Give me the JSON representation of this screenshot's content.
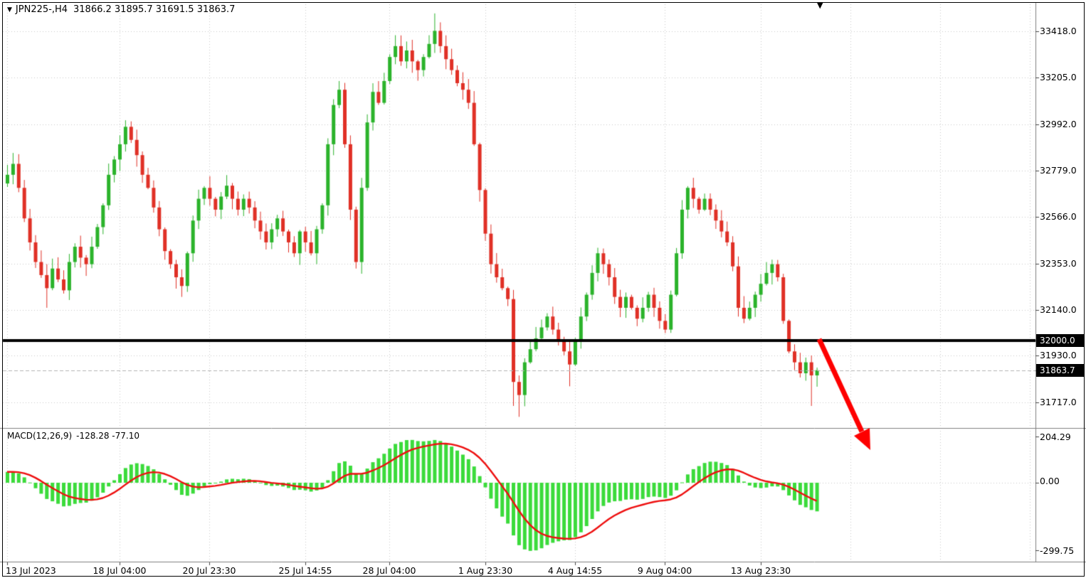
{
  "header": {
    "dropdown_icon": "▼",
    "symbol": "JPN225-,H4",
    "ohlc_text": "31866.2 31895.7 31691.5 31863.7"
  },
  "shift_marker_icon": "▼",
  "indicator_label": {
    "name": "MACD(12,26,9)",
    "values": "-128.28 -77.10"
  },
  "price_axis": {
    "labels": [
      "33418.0",
      "33205.0",
      "32992.0",
      "32779.0",
      "32566.0",
      "32353.0",
      "32140.0",
      "31930.0",
      "31717.0"
    ],
    "line_tag": "32000.0",
    "bid_tag": "31863.7"
  },
  "macd_axis": {
    "labels": [
      "204.29",
      "0.00",
      "-299.75"
    ]
  },
  "colors": {
    "background": "#ffffff",
    "grid": "#c9c9c9",
    "candle_up": "#2bb32b",
    "candle_down": "#e03026",
    "histogram": "#3bdb3b",
    "signal": "#ee0e0e",
    "hline": "#000000",
    "bid_line": "#b4b4b4",
    "arrow": "#fe0000",
    "tag_bg": "#000000",
    "tag_fg": "#ffffff"
  },
  "chart_data": {
    "type": "candlestick",
    "title": "JPN225- H4 with MACD(12,26,9)",
    "symbol": "JPN225-",
    "timeframe": "H4",
    "current_ohlc": {
      "open": 31866.2,
      "high": 31895.7,
      "low": 31691.5,
      "close": 31863.7
    },
    "price_ticks": [
      33418.0,
      33205.0,
      32992.0,
      32779.0,
      32566.0,
      32353.0,
      32140.0,
      31930.0,
      31717.0
    ],
    "horizontal_line": 32000.0,
    "bid_price": 31863.7,
    "macd": {
      "fast": 12,
      "slow": 26,
      "signal": 9,
      "current_macd": -128.28,
      "current_signal": -77.1,
      "ticks": [
        204.29,
        0.0,
        -299.75
      ]
    },
    "x_tick_labels": [
      "13 Jul 2023",
      "18 Jul 04:00",
      "20 Jul 23:30",
      "25 Jul 14:55",
      "28 Jul 04:00",
      "1 Aug 23:30",
      "4 Aug 14:55",
      "9 Aug 04:00",
      "13 Aug 23:30"
    ],
    "x_tick_indices": [
      0,
      20,
      36,
      53,
      68,
      85,
      101,
      117,
      134
    ],
    "open_first": 32720,
    "closes": [
      32760,
      32810,
      32700,
      32560,
      32450,
      32360,
      32300,
      32240,
      32330,
      32280,
      32230,
      32360,
      32430,
      32380,
      32350,
      32430,
      32520,
      32620,
      32760,
      32830,
      32900,
      32980,
      32920,
      32850,
      32760,
      32700,
      32610,
      32510,
      32410,
      32350,
      32290,
      32250,
      32400,
      32550,
      32650,
      32700,
      32650,
      32600,
      32660,
      32710,
      32650,
      32600,
      32650,
      32610,
      32550,
      32500,
      32450,
      32510,
      32560,
      32500,
      32450,
      32400,
      32500,
      32450,
      32400,
      32510,
      32620,
      32900,
      33080,
      33150,
      32900,
      32600,
      32360,
      32700,
      33000,
      33140,
      33090,
      33190,
      33300,
      33350,
      33280,
      33330,
      33280,
      33240,
      33300,
      33360,
      33420,
      33350,
      33290,
      33240,
      33180,
      33150,
      33090,
      32900,
      32690,
      32490,
      32350,
      32290,
      32240,
      32190,
      31810,
      31750,
      31900,
      31960,
      32010,
      32060,
      32110,
      32050,
      32000,
      31950,
      31890,
      32000,
      32110,
      32210,
      32310,
      32400,
      32350,
      32290,
      32200,
      32150,
      32200,
      32150,
      32100,
      32150,
      32210,
      32150,
      32090,
      32050,
      32210,
      32400,
      32600,
      32700,
      32650,
      32600,
      32650,
      32600,
      32550,
      32500,
      32450,
      32340,
      32150,
      32100,
      32150,
      32210,
      32260,
      32310,
      32350,
      32290,
      32090,
      31950,
      31900,
      31850,
      31900,
      31840,
      31863.7
    ],
    "wick_high_overrides": {
      "1": 32860,
      "21": 33010,
      "59": 33190,
      "69": 33400,
      "76": 33500
    },
    "wick_low_overrides": {
      "7": 32150,
      "31": 32200,
      "62": 32330,
      "90": 31700,
      "91": 31650,
      "100": 31790,
      "143": 31700
    },
    "annotations": [
      {
        "type": "horizontal_line",
        "price": 32000.0,
        "color": "#000000",
        "width": 4
      },
      {
        "type": "arrow",
        "direction": "down-right",
        "color": "#fe0000"
      }
    ],
    "ylim": [
      31611,
      33561
    ],
    "macd_ylim": [
      -330,
      220
    ],
    "grid": "dotted",
    "legend_position": "none"
  }
}
